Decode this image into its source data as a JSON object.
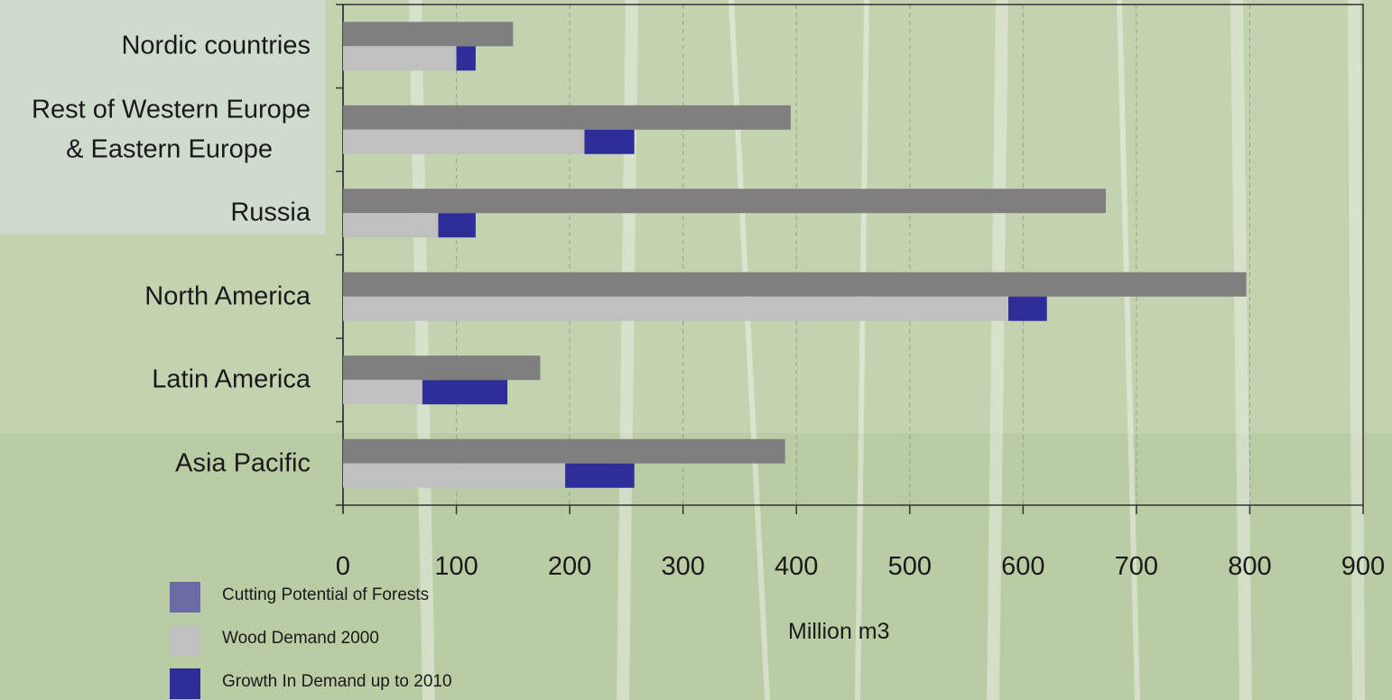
{
  "chart_data": {
    "type": "bar",
    "orientation": "horizontal",
    "stacked_pairs": true,
    "categories": [
      "Nordic countries",
      "Rest of Western Europe & Eastern Europe",
      "Russia",
      "North America",
      "Latin America",
      "Asia Pacific"
    ],
    "category_lines": [
      [
        "Nordic countries"
      ],
      [
        "Rest of Western Europe",
        "& Eastern Europe"
      ],
      [
        "Russia"
      ],
      [
        "North America"
      ],
      [
        "Latin America"
      ],
      [
        "Asia Pacific"
      ]
    ],
    "series": [
      {
        "name": "Cutting Potential of Forests",
        "values": [
          150,
          395,
          673,
          797,
          174,
          390
        ],
        "color": "#7f7f7f"
      },
      {
        "name": "Wood Demand 2000",
        "values": [
          100,
          213,
          84,
          587,
          70,
          196
        ],
        "color": "#c0c0c0"
      },
      {
        "name": "Growth In Demand up to 2010",
        "values": [
          17,
          44,
          33,
          34,
          75,
          61
        ],
        "color": "#2e2d99",
        "stacked_on": "Wood Demand 2000"
      }
    ],
    "xticks": [
      0,
      100,
      200,
      300,
      400,
      500,
      600,
      700,
      800,
      900
    ],
    "xlim": [
      0,
      900
    ],
    "xlabel": "Million m3",
    "ylabel": "",
    "grid": "vertical dashed",
    "legend_position": "bottom-left"
  },
  "legend": [
    {
      "label": "Cutting Potential of Forests",
      "color": "#6b6ba5"
    },
    {
      "label": "Wood Demand 2000",
      "color": "#c0c0c0"
    },
    {
      "label": "Growth In Demand up to 2010",
      "color": "#2e2d99"
    }
  ]
}
